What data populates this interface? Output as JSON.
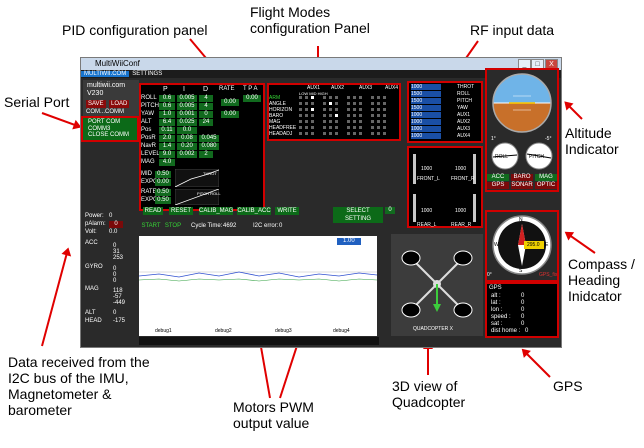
{
  "annotations": {
    "pid": "PID configuration panel",
    "flight_modes": "Flight Modes configuration Panel",
    "rf": "RF input data",
    "serial": "Serial Port",
    "altitude": "Altitude Indicator",
    "compass": "Compass / Heading Inidcator",
    "i2c": "Data received from the I2C bus of the IMU, Magnetometer & barometer",
    "motors": "Motors PWM output value",
    "view3d": "3D view of Quadcopter",
    "gps": "GPS"
  },
  "window": {
    "title": "MultiWiiConf",
    "min": "_",
    "max": "□",
    "close": "X",
    "menu": [
      "MULTIWII.COM",
      "SETTINGS"
    ]
  },
  "left": {
    "brand": "multiwii.com",
    "version": "V230",
    "save": "SAVE",
    "load": "LOAD",
    "comm": "COM...COMM",
    "port_com": "PORT COM",
    "comm2": "COMM3",
    "close_comm": "CLOSE COMM"
  },
  "pid": {
    "headers": [
      "P",
      "I",
      "D",
      "RATE",
      "T P A"
    ],
    "rows": [
      {
        "name": "ROLL",
        "p": "0.6",
        "i": "0.005",
        "d": "4"
      },
      {
        "name": "PITCH",
        "p": "0.6",
        "i": "0.005",
        "d": "4"
      },
      {
        "name": "YAW",
        "p": "1.0",
        "i": "0.001",
        "d": "0"
      },
      {
        "name": "ALT",
        "p": "6.4",
        "i": "0.025",
        "d": "24"
      },
      {
        "name": "Pos",
        "p": "0.11",
        "i": "0.0",
        "d": ""
      },
      {
        "name": "PosR",
        "p": "2.0",
        "i": "0.08",
        "d": "0.045"
      },
      {
        "name": "NavR",
        "p": "1.4",
        "i": "0.20",
        "d": "0.080"
      },
      {
        "name": "LEVEL",
        "p": "9.0",
        "i": "0.002",
        "d": "2"
      },
      {
        "name": "MAG",
        "p": "4.0",
        "i": "",
        "d": ""
      }
    ],
    "rate_rp": "0.00",
    "rate_yaw": "0.00",
    "tpa": "0.00",
    "mid_label": "MID",
    "mid": "0.50",
    "expo_label": "EXPO",
    "expo": "0.00",
    "rate_label": "RATE",
    "rate2": "0.50",
    "expo2": "0.50",
    "throt": "THROT",
    "pitch_roll": "PITCH ROLL",
    "buttons": [
      "READ",
      "RESET",
      "CALIB_MAG",
      "CALIB_ACC",
      "WRITE",
      "SELECT SETTING"
    ],
    "setting_value": "0"
  },
  "aux": {
    "headers": [
      "AUX1",
      "AUX2",
      "AUX3",
      "AUX4"
    ],
    "sub": "LOW MID HIGH",
    "modes": [
      "ARM",
      "ANGLE",
      "HORIZON",
      "BARO",
      "MAG",
      "HEADFREE",
      "HEADADJ"
    ]
  },
  "rf": {
    "rows": [
      {
        "value": "1000",
        "label": "THROT"
      },
      {
        "value": "1500",
        "label": "ROLL"
      },
      {
        "value": "1500",
        "label": "PITCH"
      },
      {
        "value": "1500",
        "label": "YAW"
      },
      {
        "value": "1000",
        "label": "AUX1"
      },
      {
        "value": "1000",
        "label": "AUX2"
      },
      {
        "value": "1000",
        "label": "AUX3"
      },
      {
        "value": "1000",
        "label": "AUX4"
      }
    ]
  },
  "motors_box": {
    "front_l": "FRONT_L",
    "front_r": "FRONT_R",
    "v1": "1000",
    "v2": "1000",
    "v3": "1000",
    "v4": "1000",
    "rear_l": "REAR_L",
    "rear_r": "REAR_R"
  },
  "attitude": {
    "roll": "ROLL",
    "pitch": "PITCH",
    "roll_deg": "1°",
    "pitch_deg": "-5°"
  },
  "sensors": {
    "row1": [
      "ACC",
      "BARO",
      "MAG"
    ],
    "row2": [
      "GPS",
      "SONAR",
      "OPTIC"
    ]
  },
  "compass": {
    "n": "N",
    "e": "E",
    "s": "S",
    "w": "W",
    "heading": "295.0",
    "deg": "0°",
    "gps_fix": "GPS_fix"
  },
  "gps": {
    "title": "GPS",
    "alt": "alt :",
    "alt_v": "0",
    "lat": "lat :",
    "lat_v": "0",
    "lon": "lon :",
    "lon_v": "0",
    "speed": "speed :",
    "speed_v": "0",
    "sat": "sat :",
    "sat_v": "0",
    "dist": "dist home :",
    "dist_v": "0"
  },
  "status": {
    "start": "START",
    "stop": "STOP",
    "cycle_label": "Cycle Time:",
    "cycle": "4692",
    "i2c_label": "I2C error:",
    "i2c": "0",
    "power_label": "Power:",
    "power": "0",
    "palarm_label": "pAlarm:",
    "palarm": "0",
    "volt_label": "Volt:",
    "volt": "0.0",
    "graph_scale": "1.00"
  },
  "sensor_data": {
    "acc": "ACC",
    "acc_vals": [
      "0",
      "31",
      "253"
    ],
    "gyro": "GYRO",
    "gyro_vals": [
      "0",
      "0",
      "0"
    ],
    "mag": "MAG",
    "mag_vals": [
      "118",
      "-57",
      "-449"
    ],
    "alt": "ALT",
    "alt_v": "0",
    "head": "HEAD",
    "head_v": "-175"
  },
  "debug": [
    "debug1",
    "debug2",
    "debug3",
    "debug4"
  ],
  "view3d_label": "QUADCOPTER X"
}
